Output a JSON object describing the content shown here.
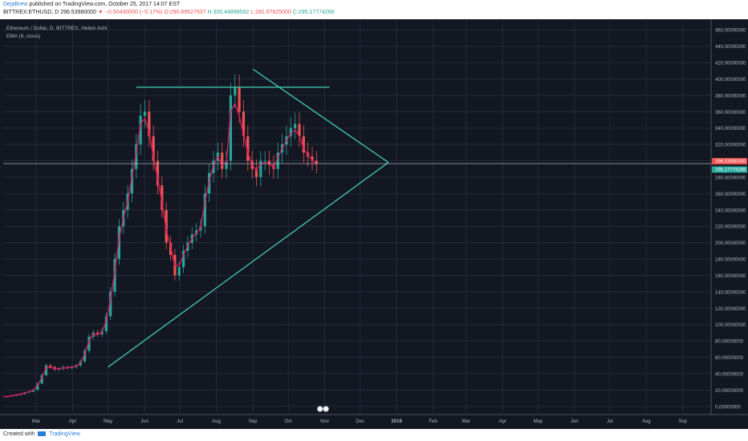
{
  "header": {
    "author": "DejaBrew",
    "published_text": "published on TradingView.com, October 25, 2017 14:07 EST",
    "symbol": "BITTREX:ETHUSD, D",
    "price": "296.53980000",
    "change": "▼ −0.50430000 (−0.17%)",
    "ohlc_o": "O:290.69527937",
    "ohlc_h": "H:305.44898592",
    "ohlc_l": "L:281.67825000",
    "ohlc_c": "C:295.17774266"
  },
  "legend": {
    "title": "Ethereum / Dollar, D, BITTREX, Heikin Ashi",
    "ema": "EMA (8, close)"
  },
  "footer": {
    "created_with": "Created with",
    "brand": "TradingView"
  },
  "colors": {
    "background": "#131722",
    "grid": "#222a3a",
    "up": "#26a69a",
    "down": "#ef5350",
    "ema": "#d81b60",
    "trendline": "#3ec2aa",
    "price_label_last": "#ef5350",
    "price_label_ema": "#26a69a"
  },
  "chart_data": {
    "type": "line",
    "title": "Ethereum / Dollar, D, BITTREX, Heikin Ashi",
    "y_scale": "linear",
    "ylim": [
      -10,
      470
    ],
    "grid": true,
    "y_ticks": [
      "0.00000000",
      "20.00000000",
      "40.00000000",
      "60.00000000",
      "80.00000000",
      "100.00000000",
      "120.00000000",
      "140.00000000",
      "160.00000000",
      "180.00000000",
      "200.00000000",
      "220.00000000",
      "240.00000000",
      "260.00000000",
      "280.00000000",
      "300.00000000",
      "320.00000000",
      "340.00000000",
      "360.00000000",
      "380.00000000",
      "400.00000000",
      "420.00000000",
      "440.00000000",
      "460.00000000"
    ],
    "x_ticks": [
      "Mar",
      "Apr",
      "May",
      "Jun",
      "Jul",
      "Aug",
      "Sep",
      "Oct",
      "Nov",
      "Dec",
      "2018",
      "Feb",
      "Mar",
      "Apr",
      "May",
      "Jun",
      "Jul",
      "Aug",
      "Sep"
    ],
    "price_labels": [
      {
        "label": "296.53980000",
        "value": 296.54,
        "kind": "last"
      },
      {
        "label": "295.17774266",
        "value": 295.18,
        "kind": "ema"
      }
    ],
    "series": [
      {
        "values": [
          12,
          12,
          13,
          14,
          15,
          17,
          18,
          20,
          28,
          38,
          50,
          48,
          45,
          46,
          48,
          47,
          48,
          50,
          55,
          68,
          85,
          90,
          88,
          92,
          110,
          140,
          180,
          220,
          240,
          260,
          290,
          320,
          355,
          360,
          330,
          300,
          270,
          240,
          200,
          185,
          160,
          170,
          190,
          200,
          210,
          215,
          220,
          260,
          285,
          300,
          310,
          290,
          300,
          380,
          390,
          360,
          330,
          300,
          290,
          280,
          300,
          300,
          295,
          290,
          310,
          320,
          330,
          340,
          345,
          330,
          310,
          305,
          300,
          296.5
        ]
      },
      {
        "values": [
          12,
          12,
          13,
          14,
          15,
          16,
          18,
          20,
          26,
          35,
          47,
          48,
          46,
          46,
          47,
          47,
          48,
          49,
          53,
          64,
          80,
          88,
          88,
          90,
          105,
          130,
          165,
          205,
          230,
          250,
          280,
          310,
          345,
          352,
          335,
          305,
          278,
          250,
          215,
          195,
          172,
          172,
          185,
          196,
          205,
          212,
          218,
          250,
          275,
          295,
          305,
          295,
          298,
          360,
          370,
          355,
          332,
          310,
          295,
          288,
          296,
          298,
          296,
          292,
          304,
          315,
          325,
          333,
          338,
          330,
          315,
          307,
          301,
          295.2
        ]
      }
    ],
    "trendlines": [
      {
        "from": {
          "x": "2017-05-01",
          "y": 48
        },
        "to": {
          "x": "2017-12-25",
          "y": 298
        }
      },
      {
        "from": {
          "x": "2017-09-01",
          "y": 412
        },
        "to": {
          "x": "2017-12-25",
          "y": 298
        }
      },
      {
        "from": {
          "x": "2017-05-25",
          "y": 390
        },
        "to": {
          "x": "2017-11-05",
          "y": 390
        }
      }
    ]
  }
}
